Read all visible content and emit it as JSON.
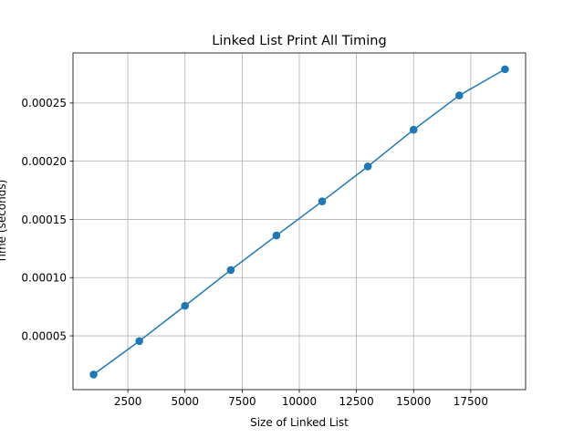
{
  "chart_data": {
    "type": "line",
    "title": "Linked List Print All Timing",
    "xlabel": "Size of Linked List",
    "ylabel": "Time (seconds)",
    "x": [
      1000,
      3000,
      5000,
      7000,
      9000,
      11000,
      13000,
      15000,
      17000,
      19000
    ],
    "series": [
      {
        "values": [
          1.68e-05,
          4.55e-05,
          7.58e-05,
          0.0001065,
          0.0001362,
          0.0001655,
          0.0001955,
          0.000227,
          0.0002565,
          0.000279
        ],
        "color": "#1f77b4",
        "marker": "circle"
      }
    ],
    "xlim": [
      100,
      19900
    ],
    "ylim": [
      3.8e-06,
      0.000293
    ],
    "xticks": [
      2500,
      5000,
      7500,
      10000,
      12500,
      15000,
      17500
    ],
    "xtick_labels": [
      "2500",
      "5000",
      "7500",
      "10000",
      "12500",
      "15000",
      "17500"
    ],
    "yticks": [
      5e-05,
      0.0001,
      0.00015,
      0.0002,
      0.00025
    ],
    "ytick_labels": [
      "0.00005",
      "0.00010",
      "0.00015",
      "0.00020",
      "0.00025"
    ],
    "grid": true,
    "colors": {
      "line": "#1f77b4",
      "grid": "#b0b0b0",
      "axes": "#000000"
    }
  }
}
